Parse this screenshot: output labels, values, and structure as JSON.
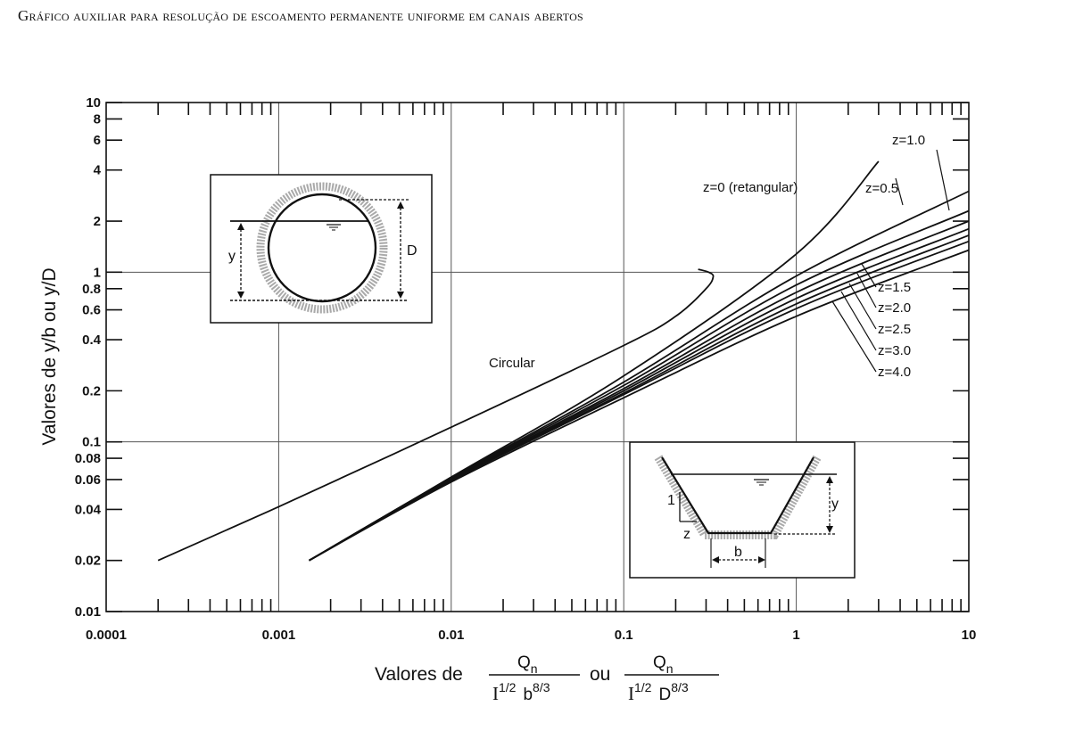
{
  "title": "Gráfico auxiliar para resolução de escoamento permanente uniforme em canais abertos",
  "chart_data": {
    "type": "line",
    "x_scale": "log",
    "y_scale": "log",
    "xlim": [
      0.0001,
      10
    ],
    "ylim": [
      0.01,
      10
    ],
    "x_ticks": [
      {
        "v": 0.0001,
        "label": "0.0001"
      },
      {
        "v": 0.001,
        "label": "0.001"
      },
      {
        "v": 0.01,
        "label": "0.01"
      },
      {
        "v": 0.1,
        "label": "0.1"
      },
      {
        "v": 1,
        "label": "1"
      },
      {
        "v": 10,
        "label": "10"
      }
    ],
    "y_ticks": [
      {
        "v": 0.01,
        "label": "0.01"
      },
      {
        "v": 0.02,
        "label": "0.02"
      },
      {
        "v": 0.04,
        "label": "0.04"
      },
      {
        "v": 0.06,
        "label": "0.06"
      },
      {
        "v": 0.08,
        "label": "0.08"
      },
      {
        "v": 0.1,
        "label": "0.1"
      },
      {
        "v": 0.2,
        "label": "0.2"
      },
      {
        "v": 0.4,
        "label": "0.4"
      },
      {
        "v": 0.6,
        "label": "0.6"
      },
      {
        "v": 0.8,
        "label": "0.8"
      },
      {
        "v": 1,
        "label": "1"
      },
      {
        "v": 2,
        "label": "2"
      },
      {
        "v": 4,
        "label": "4"
      },
      {
        "v": 6,
        "label": "6"
      },
      {
        "v": 8,
        "label": "8"
      },
      {
        "v": 10,
        "label": "10"
      }
    ],
    "grid": true,
    "ylabel": "Valores de y/b ou y/D",
    "xlabel": {
      "prefix": "Valores de",
      "numerator": "Q",
      "numerator_sub": "n",
      "denominator_1": {
        "base": "I",
        "exp": "1/2",
        "second": "b",
        "second_exp": "8/3"
      },
      "connector": "ou",
      "denominator_2": {
        "base": "I",
        "exp": "1/2",
        "second": "D",
        "second_exp": "8/3"
      }
    },
    "series": [
      {
        "name": "Circular",
        "label": "Circular",
        "x": [
          0.0002,
          0.001,
          0.01,
          0.1,
          0.2,
          0.3,
          0.33,
          0.31,
          0.27
        ],
        "y": [
          0.02,
          0.0415,
          0.122,
          0.37,
          0.55,
          0.8,
          0.94,
          1.0,
          1.04
        ]
      },
      {
        "name": "z=0",
        "label": "z=0 (retangular)",
        "x": [
          0.0015,
          0.01,
          0.1,
          1,
          3
        ],
        "y": [
          0.02,
          0.062,
          0.245,
          1.28,
          4.5
        ]
      },
      {
        "name": "z=0.5",
        "label": "z=0.5",
        "x": [
          0.0015,
          0.01,
          0.1,
          1,
          10
        ],
        "y": [
          0.02,
          0.0615,
          0.225,
          0.95,
          3.0
        ]
      },
      {
        "name": "z=1.0",
        "label": "z=1.0",
        "x": [
          0.0015,
          0.01,
          0.1,
          1,
          10
        ],
        "y": [
          0.02,
          0.061,
          0.215,
          0.84,
          2.3
        ]
      },
      {
        "name": "z=1.5",
        "label": "z=1.5",
        "x": [
          0.0015,
          0.01,
          0.1,
          1,
          10
        ],
        "y": [
          0.02,
          0.0605,
          0.206,
          0.76,
          2.0
        ]
      },
      {
        "name": "z=2.0",
        "label": "z=2.0",
        "x": [
          0.0015,
          0.01,
          0.1,
          1,
          10
        ],
        "y": [
          0.02,
          0.06,
          0.2,
          0.7,
          1.8
        ]
      },
      {
        "name": "z=2.5",
        "label": "z=2.5",
        "x": [
          0.0015,
          0.01,
          0.1,
          1,
          10
        ],
        "y": [
          0.02,
          0.0595,
          0.194,
          0.65,
          1.65
        ]
      },
      {
        "name": "z=3.0",
        "label": "z=3.0",
        "x": [
          0.0015,
          0.01,
          0.1,
          1,
          10
        ],
        "y": [
          0.02,
          0.059,
          0.19,
          0.61,
          1.52
        ]
      },
      {
        "name": "z=4.0",
        "label": "z=4.0",
        "x": [
          0.0015,
          0.01,
          0.1,
          1,
          10
        ],
        "y": [
          0.02,
          0.058,
          0.182,
          0.55,
          1.35
        ]
      }
    ],
    "insets": {
      "circular": {
        "depth_label": "y",
        "diameter_label": "D"
      },
      "trapezoidal": {
        "depth_label": "y",
        "bottom_label": "b",
        "slope_vertical": "1",
        "slope_horizontal": "z"
      }
    }
  }
}
